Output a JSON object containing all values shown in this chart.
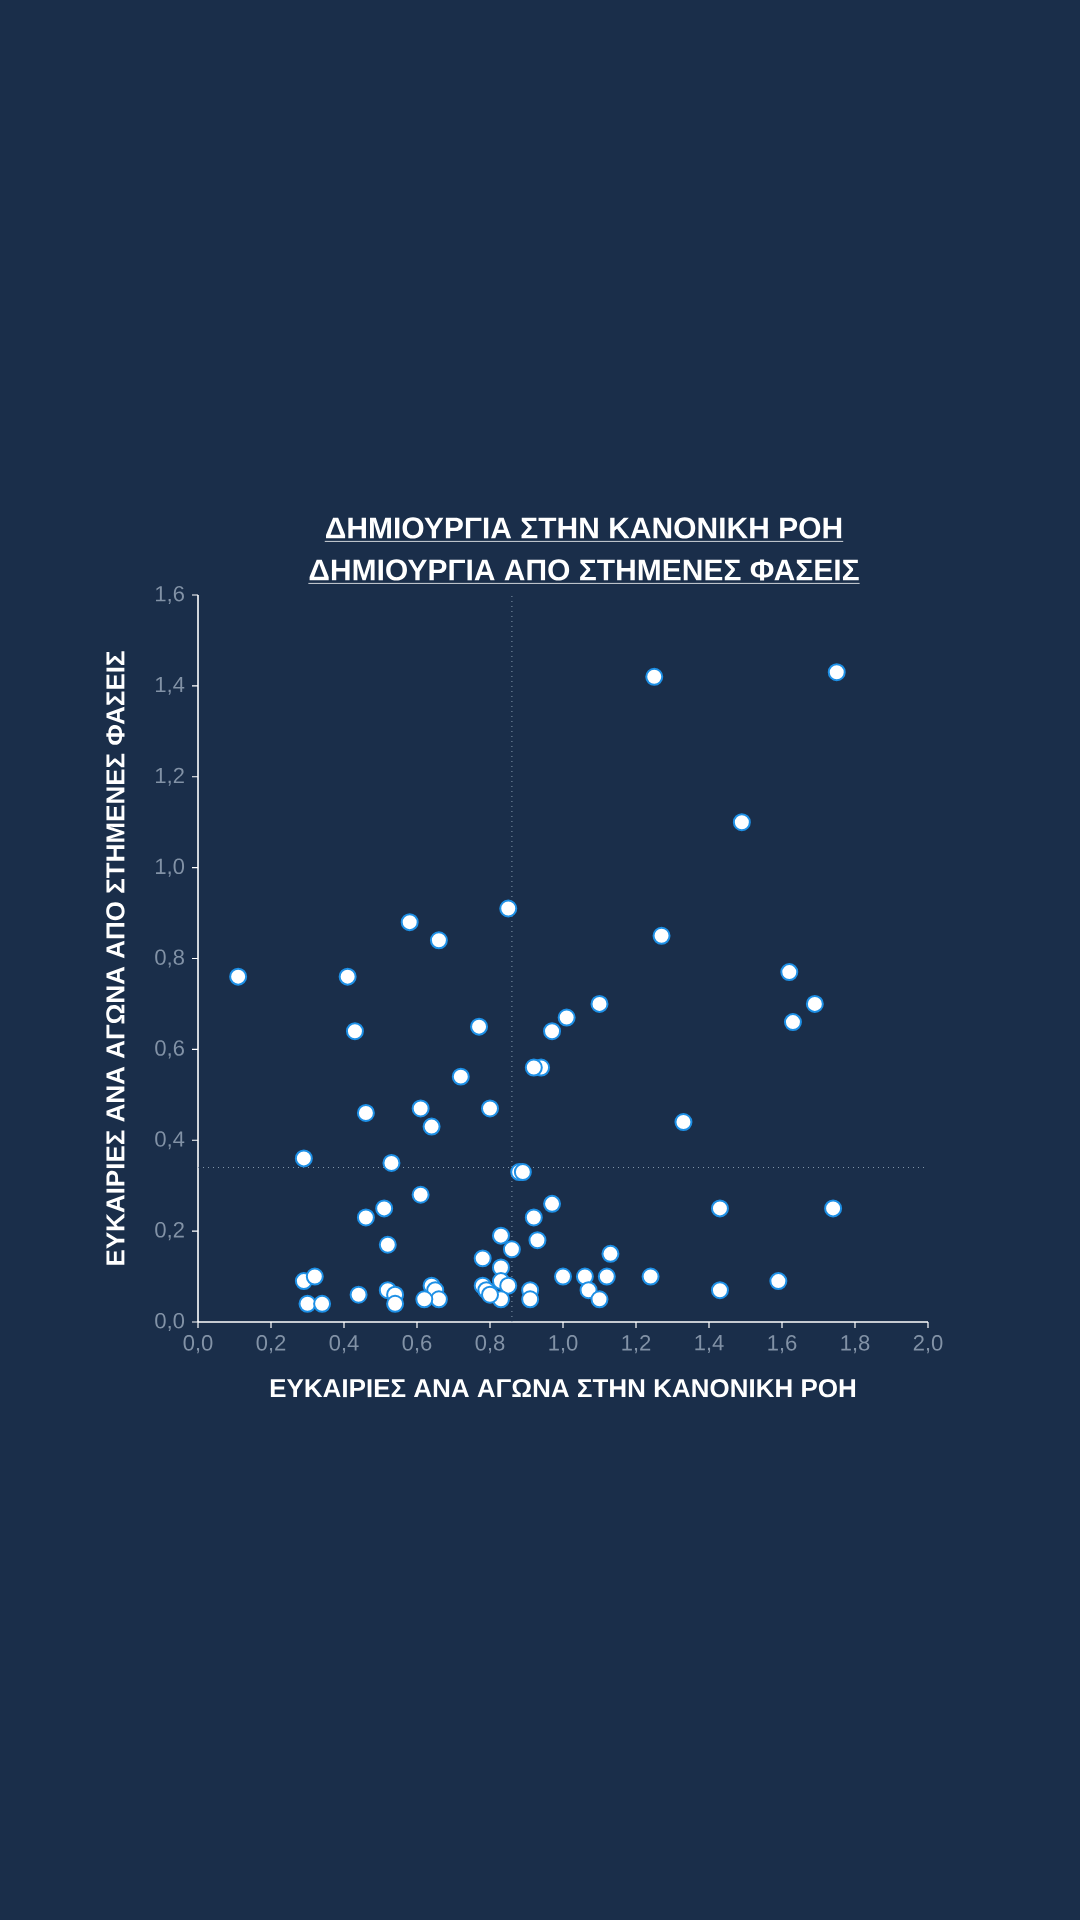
{
  "chart_data": {
    "type": "scatter",
    "title": "ΔΗΜΙΟΥΡΓΙΑ ΣΤΗΝ ΚΑΝΟΝΙΚΗ ΡΟΗ",
    "subtitle": "ΔΗΜΙΟΥΡΓΙΑ ΑΠΟ ΣΤΗΜΕΝΕΣ ΦΑΣΕΙΣ",
    "xlabel": "ΕΥΚΑΙΡΙΕΣ ΑΝΑ ΑΓΩΝΑ ΣΤΗΝ ΚΑΝΟΝΙΚΗ ΡΟΗ",
    "ylabel": "ΕΥΚΑΙΡΙΕΣ ΑΝΑ ΑΓΩΝΑ ΑΠΟ ΣΤΗΜΕΝΕΣ ΦΑΣΕΙΣ",
    "x": [
      0.11,
      0.41,
      0.43,
      0.58,
      0.66,
      0.85,
      1.25,
      1.75,
      1.49,
      1.27,
      1.62,
      1.69,
      1.63,
      1.1,
      1.01,
      0.97,
      0.77,
      0.72,
      0.94,
      0.92,
      1.33,
      0.61,
      0.46,
      0.64,
      0.8,
      0.29,
      0.53,
      0.88,
      0.89,
      0.61,
      0.97,
      0.46,
      0.51,
      0.52,
      0.92,
      0.83,
      0.93,
      0.86,
      0.78,
      1.13,
      1.43,
      1.74,
      0.83,
      0.83,
      0.78,
      0.85,
      0.79,
      0.83,
      1.06,
      1.12,
      1.0,
      1.24,
      1.59,
      1.43,
      1.07,
      1.1,
      0.91,
      0.91,
      0.29,
      0.32,
      0.3,
      0.34,
      0.44,
      0.52,
      0.54,
      0.54,
      0.64,
      0.65,
      0.66,
      0.62,
      0.8
    ],
    "values": [
      0.76,
      0.76,
      0.64,
      0.88,
      0.84,
      0.91,
      1.42,
      1.43,
      1.1,
      0.85,
      0.77,
      0.7,
      0.66,
      0.7,
      0.67,
      0.64,
      0.65,
      0.54,
      0.56,
      0.56,
      0.44,
      0.47,
      0.46,
      0.43,
      0.47,
      0.36,
      0.35,
      0.33,
      0.33,
      0.28,
      0.26,
      0.23,
      0.25,
      0.17,
      0.23,
      0.19,
      0.18,
      0.16,
      0.14,
      0.15,
      0.25,
      0.25,
      0.12,
      0.09,
      0.08,
      0.08,
      0.07,
      0.05,
      0.1,
      0.1,
      0.1,
      0.1,
      0.09,
      0.07,
      0.07,
      0.05,
      0.07,
      0.05,
      0.09,
      0.1,
      0.04,
      0.04,
      0.06,
      0.07,
      0.06,
      0.04,
      0.08,
      0.07,
      0.05,
      0.05,
      0.06
    ],
    "color": "#ffffff",
    "marker": "circle",
    "xlim": [
      0,
      2.0
    ],
    "ylim": [
      0,
      1.6
    ],
    "xticks": [
      {
        "value": 0,
        "label": "0,0"
      },
      {
        "value": 0.2,
        "label": "0,2"
      },
      {
        "value": 0.4,
        "label": "0,4"
      },
      {
        "value": 0.6,
        "label": "0,6"
      },
      {
        "value": 0.8,
        "label": "0,8"
      },
      {
        "value": 1.0,
        "label": "1,0"
      },
      {
        "value": 1.2,
        "label": "1,2"
      },
      {
        "value": 1.4,
        "label": "1,4"
      },
      {
        "value": 1.6,
        "label": "1,6"
      },
      {
        "value": 1.8,
        "label": "1,8"
      },
      {
        "value": 2.0,
        "label": "2,0"
      }
    ],
    "yticks": [
      {
        "value": 0,
        "label": "0,0"
      },
      {
        "value": 0.2,
        "label": "0,2"
      },
      {
        "value": 0.4,
        "label": "0,4"
      },
      {
        "value": 0.6,
        "label": "0,6"
      },
      {
        "value": 0.8,
        "label": "0,8"
      },
      {
        "value": 1.0,
        "label": "1,0"
      },
      {
        "value": 1.2,
        "label": "1,2"
      },
      {
        "value": 1.4,
        "label": "1,4"
      },
      {
        "value": 1.6,
        "label": "1,6"
      }
    ],
    "ref_lines": [
      {
        "axis": "x",
        "value": 0.86,
        "line_style": "dotted"
      },
      {
        "axis": "y",
        "value": 0.34,
        "line_style": "dotted"
      }
    ],
    "grid": false
  }
}
